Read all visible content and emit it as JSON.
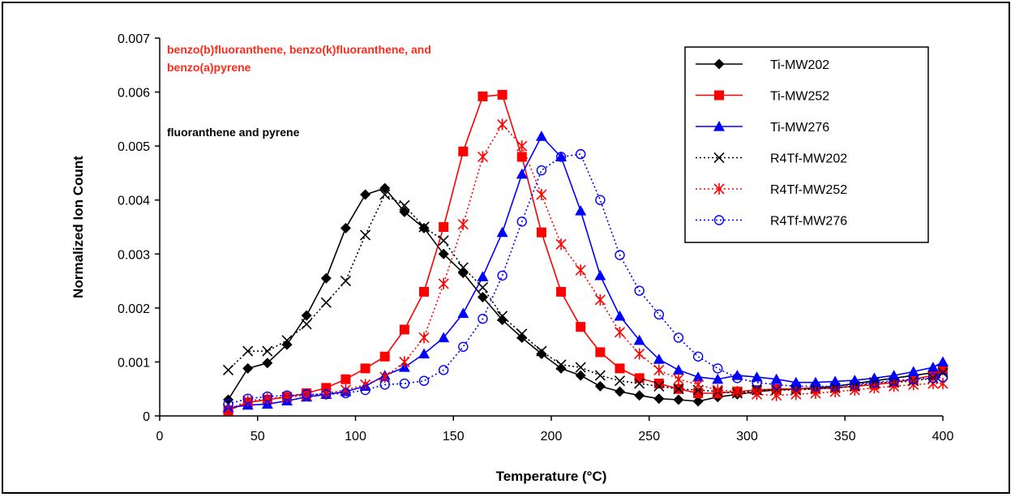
{
  "chart_data": {
    "type": "line",
    "xlabel": "Temperature (°C)",
    "ylabel": "Normalized Ion Count",
    "xlim": [
      0,
      400
    ],
    "ylim": [
      0,
      0.007
    ],
    "xticks": [
      "0",
      "50",
      "100",
      "150",
      "200",
      "250",
      "300",
      "350",
      "400"
    ],
    "yticks": [
      "0",
      "0.001",
      "0.002",
      "0.003",
      "0.004",
      "0.005",
      "0.006",
      "0.007"
    ],
    "grid": false,
    "legend_position": "top-right",
    "annotations": [
      {
        "text": "benzo(b)fluoranthene, benzo(k)fluoranthene, and",
        "color": "#ff2a1a"
      },
      {
        "text": "benzo(a)pyrene",
        "color": "#ff2a1a"
      },
      {
        "text": "fluoranthene and pyrene",
        "color": "#000000"
      }
    ],
    "x": [
      35,
      45,
      55,
      65,
      75,
      85,
      95,
      105,
      115,
      125,
      135,
      145,
      155,
      165,
      175,
      185,
      195,
      205,
      215,
      225,
      235,
      245,
      255,
      265,
      275,
      285,
      295,
      305,
      315,
      325,
      335,
      345,
      355,
      365,
      375,
      385,
      395,
      400
    ],
    "series": [
      {
        "name": "Ti-MW202",
        "color": "#000000",
        "marker": "diamond",
        "dash": "solid",
        "values": [
          0.0003,
          0.00088,
          0.00098,
          0.00132,
          0.00186,
          0.00255,
          0.00348,
          0.0041,
          0.00422,
          0.00378,
          0.00348,
          0.003,
          0.00265,
          0.0022,
          0.00178,
          0.00145,
          0.00115,
          0.00088,
          0.00075,
          0.00055,
          0.00045,
          0.00038,
          0.00032,
          0.0003,
          0.00027,
          0.00035,
          0.0004,
          0.00045,
          0.00048,
          0.0005,
          0.00052,
          0.00055,
          0.0006,
          0.00065,
          0.0007,
          0.00075,
          0.0008,
          0.00085
        ]
      },
      {
        "name": "Ti-MW252",
        "color": "#ff0000",
        "marker": "square",
        "dash": "solid",
        "values": [
          0.0001,
          0.00025,
          0.0003,
          0.00035,
          0.00042,
          0.00052,
          0.00068,
          0.00088,
          0.0011,
          0.0016,
          0.0023,
          0.0035,
          0.0049,
          0.00592,
          0.00595,
          0.0048,
          0.0034,
          0.0023,
          0.00165,
          0.00118,
          0.00088,
          0.0007,
          0.0006,
          0.0005,
          0.00042,
          0.00042,
          0.00045,
          0.00048,
          0.0005,
          0.0005,
          0.0005,
          0.00052,
          0.00055,
          0.00058,
          0.00062,
          0.00068,
          0.00075,
          0.00085
        ]
      },
      {
        "name": "Ti-MW276",
        "color": "#0000ff",
        "marker": "triangle",
        "dash": "solid",
        "values": [
          0.00015,
          0.0002,
          0.00022,
          0.00028,
          0.00035,
          0.0004,
          0.00045,
          0.00055,
          0.00075,
          0.0009,
          0.00115,
          0.00145,
          0.0019,
          0.00258,
          0.0034,
          0.00448,
          0.00518,
          0.0048,
          0.0038,
          0.0026,
          0.00185,
          0.0014,
          0.00105,
          0.00085,
          0.00072,
          0.00068,
          0.00075,
          0.00072,
          0.00068,
          0.00062,
          0.00062,
          0.00064,
          0.00066,
          0.0007,
          0.00075,
          0.00082,
          0.0009,
          0.001
        ]
      },
      {
        "name": "R4Tf-MW202",
        "color": "#000000",
        "marker": "x",
        "dash": "dotted",
        "values": [
          0.00085,
          0.0012,
          0.0012,
          0.0014,
          0.0017,
          0.0021,
          0.0025,
          0.00335,
          0.0041,
          0.0039,
          0.0035,
          0.00325,
          0.00275,
          0.00238,
          0.00185,
          0.00152,
          0.0012,
          0.00095,
          0.0009,
          0.00075,
          0.00065,
          0.0006,
          0.00055,
          0.0005,
          0.00048,
          0.00045,
          0.00042,
          0.00048,
          0.00048,
          0.00048,
          0.0005,
          0.00052,
          0.00055,
          0.00062,
          0.00062,
          0.00065,
          0.0007,
          0.0008
        ]
      },
      {
        "name": "R4Tf-MW252",
        "color": "#ff0000",
        "marker": "asterisk",
        "dash": "dotted",
        "values": [
          0.00012,
          0.00028,
          0.00032,
          0.00035,
          0.00038,
          0.00042,
          0.00048,
          0.00058,
          0.00072,
          0.001,
          0.00145,
          0.00245,
          0.00355,
          0.0048,
          0.0054,
          0.005,
          0.0041,
          0.00318,
          0.0027,
          0.00215,
          0.00155,
          0.00115,
          0.00085,
          0.00068,
          0.00058,
          0.00048,
          0.00045,
          0.0004,
          0.00038,
          0.0004,
          0.00042,
          0.00045,
          0.00048,
          0.00052,
          0.00055,
          0.00058,
          0.0006,
          0.0006
        ]
      },
      {
        "name": "R4Tf-MW276",
        "color": "#0000ff",
        "marker": "circle",
        "dash": "dotted",
        "values": [
          0.00022,
          0.00032,
          0.00036,
          0.00038,
          0.0004,
          0.0004,
          0.00042,
          0.00048,
          0.00058,
          0.0006,
          0.00065,
          0.00085,
          0.00128,
          0.0018,
          0.0026,
          0.0036,
          0.00455,
          0.0048,
          0.00485,
          0.004,
          0.00298,
          0.00232,
          0.00188,
          0.00145,
          0.0011,
          0.00088,
          0.0007,
          0.00062,
          0.00058,
          0.00055,
          0.00055,
          0.00055,
          0.00058,
          0.00062,
          0.00065,
          0.00068,
          0.0007,
          0.00072
        ]
      }
    ]
  }
}
